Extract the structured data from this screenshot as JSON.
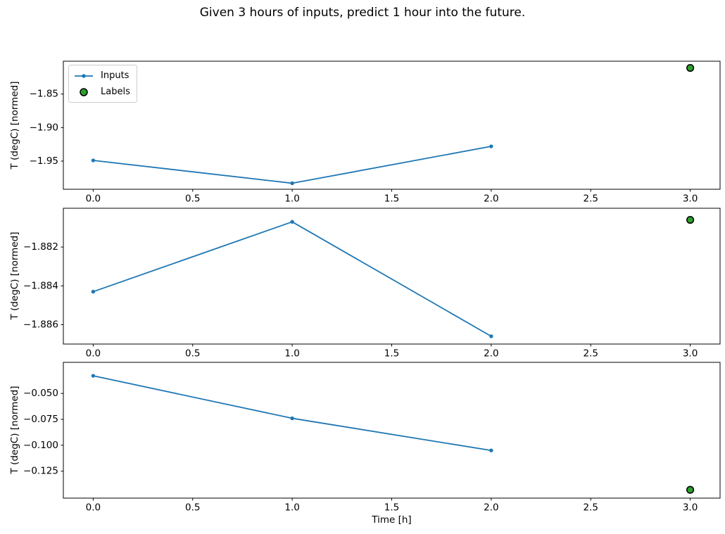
{
  "figure": {
    "title": "Given 3 hours of inputs, predict 1 hour into the future."
  },
  "colors": {
    "inputs": "#1f77b4",
    "labels_fill": "#2ca02c",
    "labels_edge": "#000000",
    "axis": "#000000",
    "background": "#ffffff"
  },
  "chart_data": [
    {
      "type": "line",
      "title": "",
      "xlabel": "",
      "ylabel": "T (degC) [normed]",
      "legend_position": "upper left",
      "series": [
        {
          "name": "Inputs",
          "x": [
            0,
            1,
            2
          ],
          "y": [
            -1.949,
            -1.983,
            -1.928
          ],
          "color": "#1f77b4",
          "marker": "dot"
        }
      ],
      "labels": {
        "name": "Labels",
        "x": [
          3
        ],
        "y": [
          -1.811
        ],
        "fill": "#2ca02c",
        "edge": "#000000",
        "marker": "circle"
      },
      "xlim": [
        -0.15,
        3.15
      ],
      "ylim": [
        -1.992,
        -1.801
      ],
      "xticks": [
        0.0,
        0.5,
        1.0,
        1.5,
        2.0,
        2.5,
        3.0
      ],
      "xtick_labels": [
        "0.0",
        "0.5",
        "1.0",
        "1.5",
        "2.0",
        "2.5",
        "3.0"
      ],
      "yticks": [
        -1.85,
        -1.9,
        -1.95
      ],
      "ytick_labels": [
        "−1.85",
        "−1.90",
        "−1.95"
      ],
      "grid": false
    },
    {
      "type": "line",
      "title": "",
      "xlabel": "",
      "ylabel": "T (degC) [normed]",
      "legend_position": "none",
      "series": [
        {
          "name": "Inputs",
          "x": [
            0,
            1,
            2
          ],
          "y": [
            -1.8843,
            -1.8807,
            -1.8866
          ],
          "color": "#1f77b4",
          "marker": "dot"
        }
      ],
      "labels": {
        "name": "Labels",
        "x": [
          3
        ],
        "y": [
          -1.8806
        ],
        "fill": "#2ca02c",
        "edge": "#000000",
        "marker": "circle"
      },
      "xlim": [
        -0.15,
        3.15
      ],
      "ylim": [
        -1.887,
        -1.88
      ],
      "xticks": [
        0.0,
        0.5,
        1.0,
        1.5,
        2.0,
        2.5,
        3.0
      ],
      "xtick_labels": [
        "0.0",
        "0.5",
        "1.0",
        "1.5",
        "2.0",
        "2.5",
        "3.0"
      ],
      "yticks": [
        -1.882,
        -1.884,
        -1.886
      ],
      "ytick_labels": [
        "−1.882",
        "−1.884",
        "−1.886"
      ],
      "grid": false
    },
    {
      "type": "line",
      "title": "",
      "xlabel": "Time [h]",
      "ylabel": "T (degC) [normed]",
      "legend_position": "none",
      "series": [
        {
          "name": "Inputs",
          "x": [
            0,
            1,
            2
          ],
          "y": [
            -0.033,
            -0.074,
            -0.105
          ],
          "color": "#1f77b4",
          "marker": "dot"
        }
      ],
      "labels": {
        "name": "Labels",
        "x": [
          3
        ],
        "y": [
          -0.143
        ],
        "fill": "#2ca02c",
        "edge": "#000000",
        "marker": "circle"
      },
      "xlim": [
        -0.15,
        3.15
      ],
      "ylim": [
        -0.151,
        -0.02
      ],
      "xticks": [
        0.0,
        0.5,
        1.0,
        1.5,
        2.0,
        2.5,
        3.0
      ],
      "xtick_labels": [
        "0.0",
        "0.5",
        "1.0",
        "1.5",
        "2.0",
        "2.5",
        "3.0"
      ],
      "yticks": [
        -0.05,
        -0.075,
        -0.1,
        -0.125
      ],
      "ytick_labels": [
        "−0.050",
        "−0.075",
        "−0.100",
        "−0.125"
      ],
      "grid": false
    }
  ]
}
